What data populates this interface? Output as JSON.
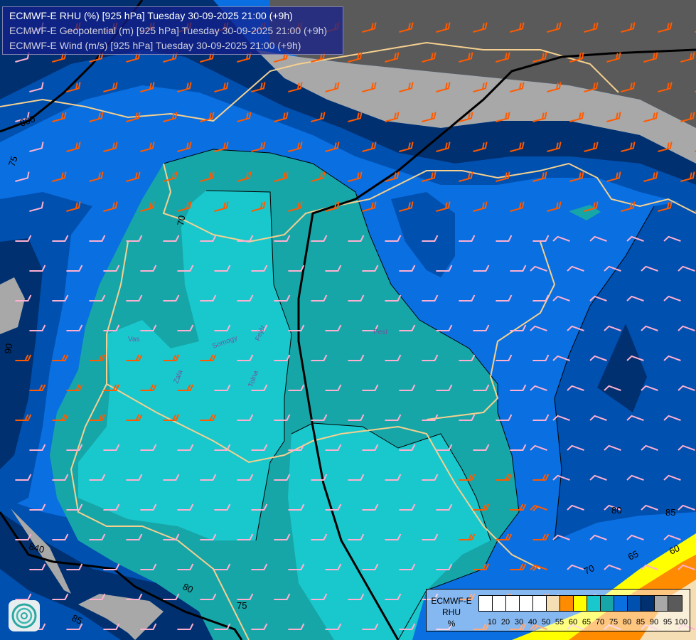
{
  "title_lines": [
    "ECMWF-E RHU (%) [925 hPa] Tuesday 30-09-2025 21:00 (+9h)",
    "ECMWF-E Geopotential (m) [925 hPa] Tuesday 30-09-2025 21:00 (+9h)",
    "ECMWF-E Wind (m/s) [925 hPa] Tuesday 30-09-2025 21:00 (+9h)"
  ],
  "legend": {
    "title": [
      "ECMWF-E",
      "RHU",
      "%"
    ],
    "colors": [
      "#ffffff",
      "#ffffff",
      "#ffffff",
      "#ffffff",
      "#ffffff",
      "#f5deb3",
      "#ff8c00",
      "#ffff00",
      "#19c8cd",
      "#17a6a8",
      "#0a6fe0",
      "#0050b0",
      "#003070",
      "#a8a8a8",
      "#5a5a5a"
    ],
    "ticks": [
      "10",
      "20",
      "30",
      "40",
      "50",
      "55",
      "60",
      "65",
      "70",
      "75",
      "80",
      "85",
      "90",
      "95",
      "100"
    ]
  },
  "contour_labels": {
    "geopotential": [
      "860",
      "840"
    ],
    "rhu": [
      "75",
      "70",
      "90",
      "80",
      "75",
      "85",
      "80",
      "70",
      "65",
      "60",
      "85"
    ]
  },
  "place_labels": [
    "Vas",
    "Zala",
    "Somogy",
    "Tolna",
    "Fejér",
    "Pest"
  ],
  "colors": {
    "rhu70": "#19c8cd",
    "rhu75": "#17a6a8",
    "rhu80": "#0a6fe0",
    "rhu85": "#0050b0",
    "rhu90": "#003070",
    "rhu95": "#a8a8a8",
    "rhu100": "#5a5a5a",
    "rhu60": "#ff8c00",
    "rhu65": "#ffff00",
    "rhu55": "#f5deb3",
    "border": "#f5d090",
    "wind_strong": "#ff5a00",
    "wind_weak": "#ffb0d0",
    "geopotential_line": "#000000"
  }
}
